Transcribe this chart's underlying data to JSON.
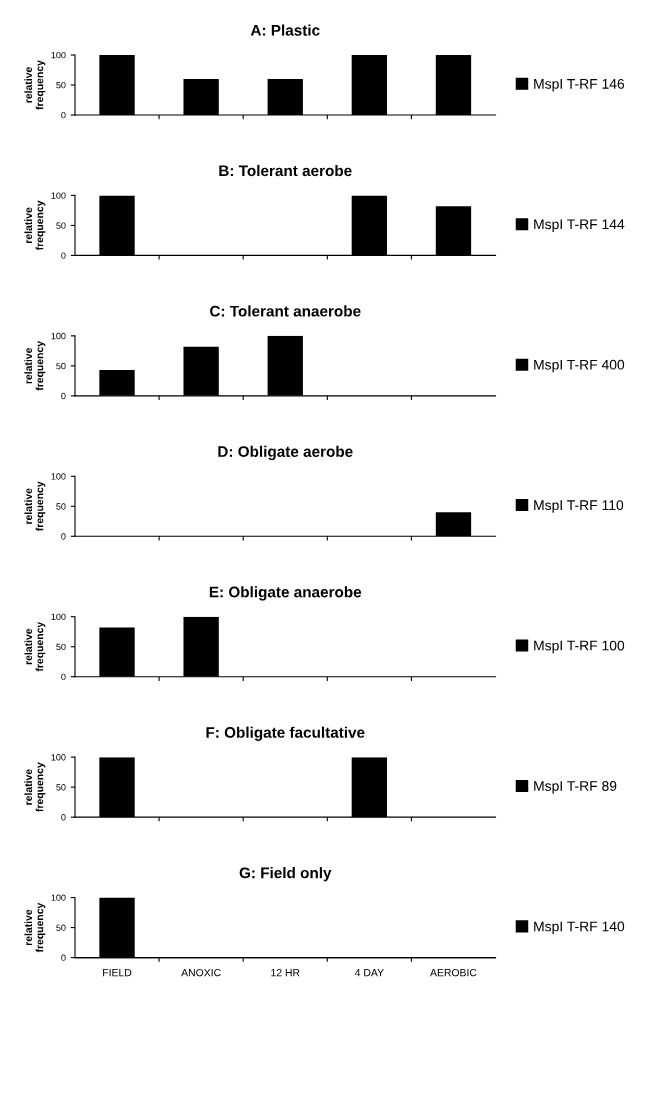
{
  "chart_data": [
    {
      "type": "bar",
      "title": "A: Plastic",
      "ylabel": "relative\nfrequency",
      "categories": [
        null,
        null,
        null,
        null,
        null
      ],
      "series": [
        {
          "name": "MspI T-RF 146",
          "color": "#000000",
          "values": [
            100,
            60,
            60,
            100,
            100
          ]
        }
      ],
      "ylim": [
        0,
        100
      ],
      "yticks": [
        0,
        50,
        100
      ],
      "legend": "right",
      "grid": false
    },
    {
      "type": "bar",
      "title": "B: Tolerant aerobe",
      "ylabel": "relative\nfrequency",
      "categories": [
        null,
        null,
        null,
        null,
        null
      ],
      "series": [
        {
          "name": "MspI T-RF 144",
          "color": "#000000",
          "values": [
            100,
            0,
            0,
            100,
            82
          ]
        }
      ],
      "ylim": [
        0,
        100
      ],
      "yticks": [
        0,
        50,
        100
      ],
      "legend": "right",
      "grid": false
    },
    {
      "type": "bar",
      "title": "C: Tolerant anaerobe",
      "ylabel": "relative\nfrequency",
      "categories": [
        null,
        null,
        null,
        null,
        null
      ],
      "series": [
        {
          "name": "MspI T-RF 400",
          "color": "#000000",
          "values": [
            43,
            82,
            100,
            0,
            0
          ]
        }
      ],
      "ylim": [
        0,
        100
      ],
      "yticks": [
        0,
        50,
        100
      ],
      "legend": "right",
      "grid": false
    },
    {
      "type": "bar",
      "title": "D: Obligate aerobe",
      "ylabel": "relative\nfrequency",
      "categories": [
        null,
        null,
        null,
        null,
        null
      ],
      "series": [
        {
          "name": "MspI T-RF 110",
          "color": "#000000",
          "values": [
            0,
            0,
            0,
            0,
            40
          ]
        }
      ],
      "ylim": [
        0,
        100
      ],
      "yticks": [
        0,
        50,
        100
      ],
      "legend": "right",
      "grid": false
    },
    {
      "type": "bar",
      "title": "E: Obligate anaerobe",
      "ylabel": "relative\nfrequency",
      "categories": [
        null,
        null,
        null,
        null,
        null
      ],
      "series": [
        {
          "name": "MspI T-RF 100",
          "color": "#000000",
          "values": [
            82,
            100,
            0,
            0,
            0
          ]
        }
      ],
      "ylim": [
        0,
        100
      ],
      "yticks": [
        0,
        50,
        100
      ],
      "legend": "right",
      "grid": false
    },
    {
      "type": "bar",
      "title": "F: Obligate facultative",
      "ylabel": "relative\nfrequency",
      "categories": [
        null,
        null,
        null,
        null,
        null
      ],
      "series": [
        {
          "name": "MspI T-RF 89",
          "color": "#000000",
          "values": [
            100,
            0,
            0,
            100,
            0
          ]
        }
      ],
      "ylim": [
        0,
        100
      ],
      "yticks": [
        0,
        50,
        100
      ],
      "legend": "right",
      "grid": false
    },
    {
      "type": "bar",
      "title": "G: Field only",
      "ylabel": "relative\nfrequency",
      "categories": [
        "FIELD",
        "ANOXIC",
        "12 HR",
        "4 DAY",
        "AEROBIC"
      ],
      "series": [
        {
          "name": "MspI T-RF 140",
          "color": "#000000",
          "values": [
            100,
            0,
            0,
            0,
            0
          ]
        }
      ],
      "ylim": [
        0,
        100
      ],
      "yticks": [
        0,
        50,
        100
      ],
      "legend": "right",
      "grid": false
    }
  ]
}
